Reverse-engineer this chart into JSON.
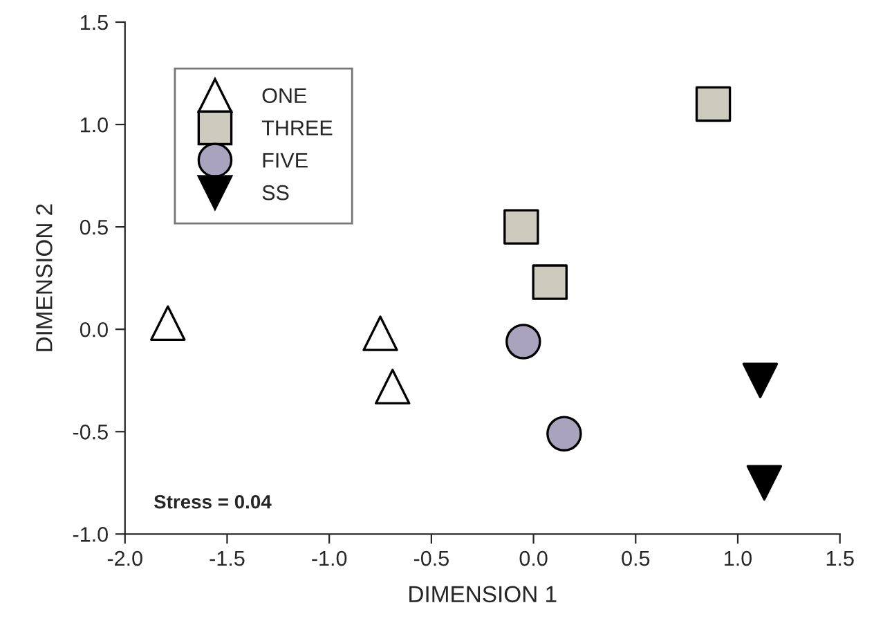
{
  "chart_data": {
    "type": "scatter",
    "xlabel": "DIMENSION 1",
    "ylabel": "DIMENSION 2",
    "xlim": [
      -2.0,
      1.5
    ],
    "xticks": [
      {
        "value": -2.0,
        "label": "-2.0"
      },
      {
        "value": -1.5,
        "label": "-1.5"
      },
      {
        "value": -1.0,
        "label": "-1.0"
      },
      {
        "value": -0.5,
        "label": "-0.5"
      },
      {
        "value": 0.0,
        "label": "0.0"
      },
      {
        "value": 0.5,
        "label": "0.5"
      },
      {
        "value": 1.0,
        "label": "1.0"
      },
      {
        "value": 1.5,
        "label": "1.5"
      }
    ],
    "ylim": [
      -1.0,
      1.5
    ],
    "yticks": [
      {
        "value": -1.0,
        "label": "-1.0"
      },
      {
        "value": -0.5,
        "label": "-0.5"
      },
      {
        "value": 0.0,
        "label": "0.0"
      },
      {
        "value": 0.5,
        "label": "0.5"
      },
      {
        "value": 1.0,
        "label": "1.0"
      },
      {
        "value": 1.5,
        "label": "1.5"
      }
    ],
    "grid": false,
    "legend": "top left",
    "annotations": [
      "Stress = 0.04"
    ],
    "series": [
      {
        "name": "ONE",
        "color": "#ffffff",
        "marker": "triangle",
        "x": [
          -1.79,
          -0.75,
          -0.69
        ],
        "values": [
          0.03,
          -0.02,
          -0.28
        ]
      },
      {
        "name": "THREE",
        "color": "#cdcbbd",
        "marker": "square",
        "x": [
          0.88,
          -0.06,
          0.08
        ],
        "values": [
          1.1,
          0.5,
          0.23
        ]
      },
      {
        "name": "FIVE",
        "color": "#a9a3bd",
        "marker": "circle",
        "x": [
          -0.05,
          0.15
        ],
        "values": [
          -0.06,
          -0.51
        ]
      },
      {
        "name": "SS",
        "color": "#000000",
        "marker": "triangle_down",
        "x": [
          1.11,
          1.13
        ],
        "values": [
          -0.25,
          -0.75
        ]
      }
    ]
  }
}
